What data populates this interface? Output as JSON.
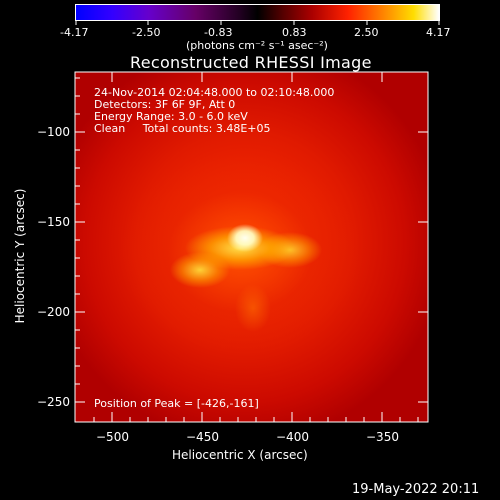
{
  "colorbar": {
    "ticks": [
      "-4.17",
      "-2.50",
      "-0.83",
      "0.83",
      "2.50",
      "4.17"
    ],
    "unit_label": "(photons cm⁻² s⁻¹ asec⁻²)"
  },
  "plot": {
    "title": "Reconstructed RHESSI Image",
    "xlabel": "Heliocentric X (arcsec)",
    "ylabel": "Heliocentric Y (arcsec)",
    "xticks": [
      "−500",
      "−450",
      "−400",
      "−350"
    ],
    "yticks": [
      "−100",
      "−150",
      "−200",
      "−250"
    ],
    "info_lines": [
      "24-Nov-2014 02:04:48.000 to 02:10:48.000",
      "Detectors: 3F 6F 9F, Att 0",
      "Energy Range: 3.0 - 6.0 keV",
      "Clean     Total counts: 3.48E+05"
    ],
    "peak_text": "Position of Peak = [-426,-161]"
  },
  "footer": {
    "date": "19-May-2022 20:11"
  }
}
